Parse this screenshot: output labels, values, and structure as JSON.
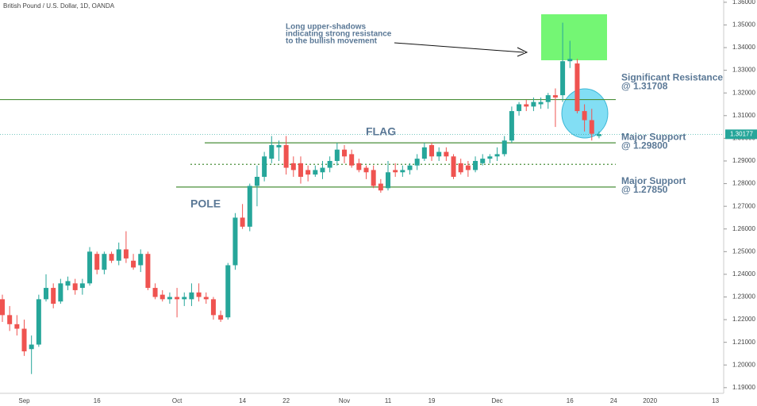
{
  "chart_data": {
    "type": "candlestick",
    "title": "British Pound / U.S. Dollar, 1D, OANDA",
    "categories": [
      null,
      null,
      null,
      "Sep",
      null,
      null,
      null,
      null,
      null,
      null,
      null,
      null,
      null,
      "16",
      null,
      null,
      null,
      null,
      null,
      null,
      null,
      null,
      null,
      null,
      "Oct",
      null,
      null,
      null,
      null,
      null,
      null,
      null,
      null,
      "14",
      null,
      null,
      null,
      null,
      null,
      "22",
      null,
      null,
      null,
      null,
      null,
      null,
      null,
      "Nov",
      null,
      null,
      null,
      null,
      null,
      "11",
      null,
      null,
      null,
      null,
      null,
      "19",
      null,
      null,
      null,
      null,
      null,
      null,
      null,
      null,
      "Dec",
      null,
      null,
      null,
      null,
      null,
      null,
      null,
      null,
      null,
      "16",
      null,
      null,
      null,
      null,
      null,
      "24",
      null,
      null,
      null,
      null,
      "2020",
      null,
      null,
      null,
      null,
      null,
      null,
      null,
      null,
      "13"
    ],
    "open": [
      1.229,
      1.222,
      1.218,
      1.216,
      1.207,
      1.209,
      1.229,
      1.234,
      1.228,
      1.235,
      1.236,
      1.234,
      1.236,
      1.249,
      1.242,
      1.249,
      1.246,
      1.251,
      1.246,
      1.244,
      1.249,
      1.234,
      1.231,
      1.229,
      1.23,
      1.229,
      1.229,
      1.232,
      1.23,
      1.229,
      1.222,
      1.221,
      1.244,
      1.265,
      1.261,
      1.279,
      1.283,
      1.291,
      1.296,
      1.297,
      1.289,
      1.289,
      1.286,
      1.284,
      1.285,
      1.287,
      1.29,
      1.295,
      1.293,
      1.289,
      1.287,
      1.286,
      1.28,
      1.278,
      1.286,
      1.285,
      1.286,
      1.288,
      1.291,
      1.297,
      1.292,
      1.294,
      1.292,
      1.289,
      1.288,
      1.286,
      1.289,
      1.291,
      1.292,
      1.293,
      1.299,
      1.312,
      1.315,
      1.314,
      1.315,
      1.316,
      1.319,
      1.319,
      1.334,
      1.333,
      1.312,
      1.308,
      1.301,
      null,
      null,
      null,
      null,
      null,
      null,
      null,
      null,
      null,
      null,
      null,
      null,
      null,
      null,
      null,
      null
    ],
    "high": [
      1.231,
      1.226,
      1.222,
      1.22,
      1.213,
      1.231,
      1.24,
      1.236,
      1.238,
      1.239,
      1.238,
      1.238,
      1.252,
      1.25,
      1.25,
      1.25,
      1.254,
      1.259,
      1.249,
      1.251,
      1.25,
      1.236,
      1.233,
      1.232,
      1.234,
      1.232,
      1.236,
      1.236,
      1.232,
      1.23,
      1.224,
      1.245,
      1.267,
      1.271,
      1.28,
      1.288,
      1.294,
      1.301,
      1.299,
      1.301,
      1.292,
      1.292,
      1.288,
      1.288,
      1.29,
      1.292,
      1.298,
      1.297,
      1.295,
      1.291,
      1.288,
      1.288,
      1.282,
      1.29,
      1.289,
      1.288,
      1.289,
      1.293,
      1.298,
      1.298,
      1.296,
      1.296,
      1.293,
      1.291,
      1.29,
      1.292,
      1.293,
      1.293,
      1.296,
      1.301,
      1.314,
      1.316,
      1.317,
      1.318,
      1.318,
      1.32,
      1.322,
      1.351,
      1.343,
      1.335,
      1.315,
      1.313,
      1.303,
      null,
      null,
      null,
      null,
      null,
      null,
      null,
      null,
      null,
      null,
      null,
      null,
      null,
      null,
      null,
      null
    ],
    "low": [
      1.219,
      1.215,
      1.213,
      1.204,
      1.196,
      1.208,
      1.228,
      1.225,
      1.227,
      1.233,
      1.231,
      1.231,
      1.235,
      1.24,
      1.24,
      1.245,
      1.244,
      1.245,
      1.242,
      1.241,
      1.233,
      1.229,
      1.228,
      1.227,
      1.221,
      1.226,
      1.226,
      1.228,
      1.227,
      1.22,
      1.219,
      1.22,
      1.242,
      1.26,
      1.259,
      1.27,
      1.281,
      1.289,
      1.29,
      1.284,
      1.283,
      1.28,
      1.281,
      1.283,
      1.282,
      1.285,
      1.288,
      1.289,
      1.287,
      1.285,
      1.282,
      1.278,
      1.276,
      1.277,
      1.283,
      1.283,
      1.284,
      1.286,
      1.29,
      1.29,
      1.29,
      1.29,
      1.282,
      1.284,
      1.283,
      1.285,
      1.288,
      1.289,
      1.29,
      1.292,
      1.298,
      1.31,
      1.312,
      1.312,
      1.313,
      1.313,
      1.305,
      1.316,
      1.331,
      1.311,
      1.303,
      1.299,
      1.3,
      null,
      null,
      null,
      null,
      null,
      null,
      null,
      null,
      null,
      null,
      null,
      null,
      null,
      null,
      null,
      null
    ],
    "close": [
      1.222,
      1.218,
      1.216,
      1.206,
      1.209,
      1.229,
      1.234,
      1.227,
      1.236,
      1.237,
      1.233,
      1.236,
      1.25,
      1.242,
      1.249,
      1.246,
      1.251,
      1.247,
      1.243,
      1.249,
      1.234,
      1.23,
      1.229,
      1.23,
      1.229,
      1.23,
      1.232,
      1.23,
      1.229,
      1.222,
      1.22,
      1.244,
      1.265,
      1.261,
      1.279,
      1.283,
      1.292,
      1.297,
      1.297,
      1.287,
      1.286,
      1.283,
      1.284,
      1.286,
      1.287,
      1.29,
      1.295,
      1.292,
      1.288,
      1.286,
      1.285,
      1.279,
      1.277,
      1.285,
      1.285,
      1.286,
      1.288,
      1.291,
      1.296,
      1.292,
      1.294,
      1.292,
      1.283,
      1.285,
      1.286,
      1.29,
      1.291,
      1.292,
      1.293,
      1.299,
      1.312,
      1.315,
      1.314,
      1.316,
      1.316,
      1.319,
      1.318,
      1.334,
      1.335,
      1.312,
      1.308,
      1.302,
      1.3018,
      null,
      null,
      null,
      null,
      null,
      null,
      null,
      null,
      null,
      null,
      null,
      null,
      null,
      null,
      null,
      null
    ],
    "up_color": "#26a69a",
    "down_color": "#ef5350",
    "ylim": [
      1.1875,
      1.361
    ],
    "yticks": [
      {
        "value": 1.19,
        "label": "1.19000"
      },
      {
        "value": 1.2,
        "label": "1.20000"
      },
      {
        "value": 1.21,
        "label": "1.21000"
      },
      {
        "value": 1.22,
        "label": "1.22000"
      },
      {
        "value": 1.23,
        "label": "1.23000"
      },
      {
        "value": 1.24,
        "label": "1.24000"
      },
      {
        "value": 1.25,
        "label": "1.25000"
      },
      {
        "value": 1.26,
        "label": "1.26000"
      },
      {
        "value": 1.27,
        "label": "1.27000"
      },
      {
        "value": 1.28,
        "label": "1.28000"
      },
      {
        "value": 1.29,
        "label": "1.29000"
      },
      {
        "value": 1.3,
        "label": "1.30000"
      },
      {
        "value": 1.31,
        "label": "1.31000"
      },
      {
        "value": 1.32,
        "label": "1.32000"
      },
      {
        "value": 1.33,
        "label": "1.33000"
      },
      {
        "value": 1.34,
        "label": "1.34000"
      },
      {
        "value": 1.35,
        "label": "1.35000"
      },
      {
        "value": 1.36,
        "label": "1.36000"
      }
    ],
    "current_price": 1.30177,
    "levels": [
      {
        "value": 1.31708,
        "label": [
          "Significant Resistance",
          "@ 1.31708"
        ],
        "style": "solid"
      },
      {
        "value": 1.298,
        "label": [
          "Major Support",
          "@ 1.29800"
        ],
        "style": "solid"
      },
      {
        "value": 1.2885,
        "style": "dotted"
      },
      {
        "value": 1.2785,
        "label": [
          "Major Support",
          "@ 1.27850"
        ],
        "style": "solid"
      }
    ],
    "level_color": "#4a8f3a",
    "annotations": {
      "note": [
        "Long upper-shadows",
        "indicating strong resistance",
        "to the bullish movement"
      ],
      "flag": "FLAG",
      "pole": "POLE"
    }
  }
}
